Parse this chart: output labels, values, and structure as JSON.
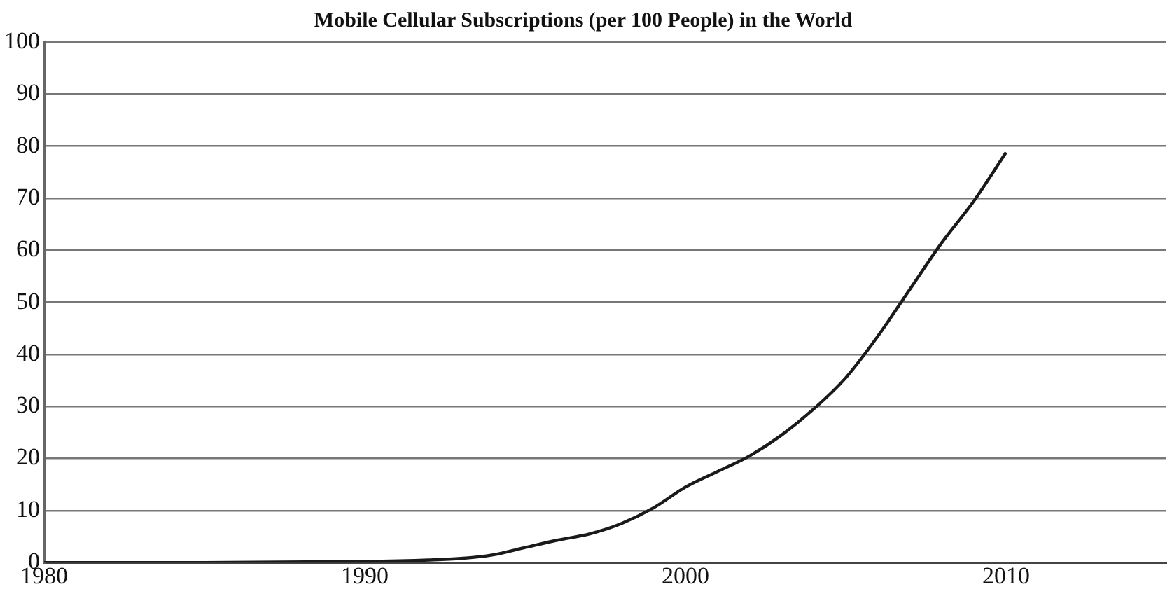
{
  "chart_data": {
    "type": "line",
    "title": "Mobile Cellular Subscriptions (per 100 People) in the World",
    "x": [
      1980,
      1985,
      1990,
      1992,
      1993,
      1994,
      1995,
      1996,
      1997,
      1998,
      1999,
      2000,
      2001,
      2002,
      2003,
      2004,
      2005,
      2006,
      2007,
      2008,
      2009,
      2010
    ],
    "series": [
      {
        "color": "#1a1a1a",
        "values": [
          0,
          0,
          0.2,
          0.5,
          0.8,
          1.5,
          2.9,
          4.3,
          5.5,
          7.5,
          10.5,
          14.5,
          17.5,
          20.5,
          24.5,
          29.5,
          35.5,
          43.5,
          52.5,
          61.5,
          69.5,
          78.8
        ]
      }
    ],
    "xlim": [
      1980,
      2015
    ],
    "xticks": [
      1980,
      1990,
      2000,
      2010
    ],
    "ylim": [
      0,
      100
    ],
    "yticks": [
      0,
      10,
      20,
      30,
      40,
      50,
      60,
      70,
      80,
      90,
      100
    ],
    "grid": "y",
    "legend": false,
    "marker": "none",
    "line_style": "solid"
  }
}
